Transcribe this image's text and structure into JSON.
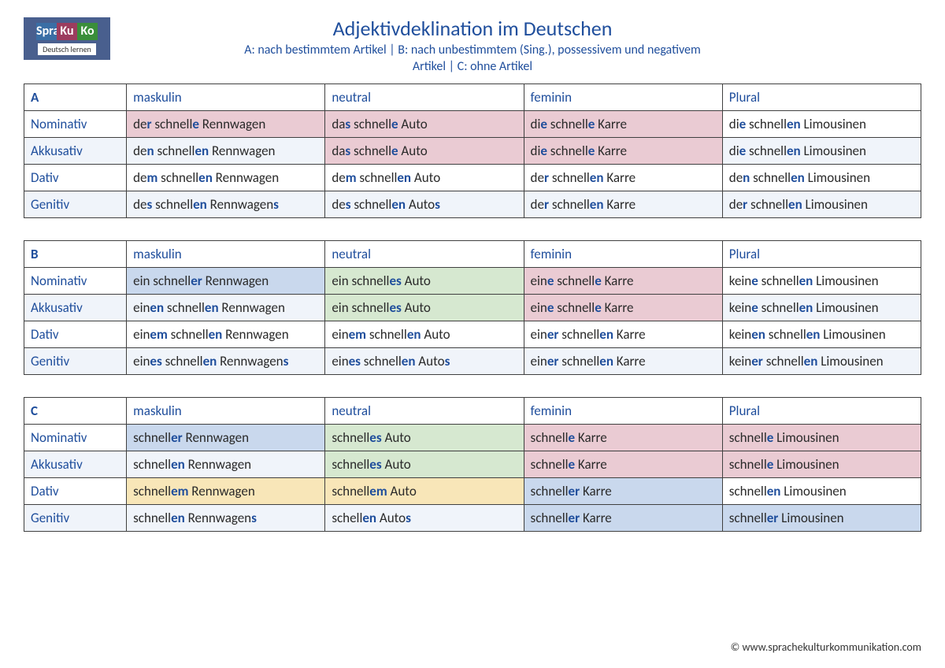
{
  "logo": {
    "line1": "Spra",
    "line2": "Ku",
    "line3": "Ko",
    "sub": "Deutsch lernen"
  },
  "title": "Adjektivdeklination im Deutschen",
  "subtitle1": "A: nach bestimmtem Artikel | B: nach unbestimmtem (Sing.), possessivem und negativem",
  "subtitle2": "Artikel | C: ohne Artikel",
  "columns": [
    "maskulin",
    "neutral",
    "feminin",
    "Plural"
  ],
  "cases": [
    "Nominativ",
    "Akkusativ",
    "Dativ",
    "Genitiv"
  ],
  "highlight_color": "#1f4e9c",
  "cell_colors": {
    "pink": "#eacbd3",
    "green": "#d6e8d0",
    "blue": "#c9d8ed",
    "yellow": "#f8e6b8",
    "alt": "#f0f4fa",
    "white": "#ffffff"
  },
  "tables": [
    {
      "letter": "A",
      "rows": [
        [
          {
            "segs": [
              "de",
              "r",
              " schnell",
              "e",
              " Rennwagen"
            ],
            "bg": "pink"
          },
          {
            "segs": [
              "da",
              "s",
              " schnell",
              "e",
              " Auto"
            ],
            "bg": "pink"
          },
          {
            "segs": [
              "di",
              "e",
              " schnell",
              "e",
              " Karre"
            ],
            "bg": "pink"
          },
          {
            "segs": [
              "di",
              "e",
              " schnell",
              "en",
              " Limousinen"
            ],
            "bg": "white"
          }
        ],
        [
          {
            "segs": [
              "de",
              "n",
              " schnell",
              "en",
              " Rennwagen"
            ],
            "bg": "alt"
          },
          {
            "segs": [
              "da",
              "s",
              " schnell",
              "e",
              " Auto"
            ],
            "bg": "pink"
          },
          {
            "segs": [
              "di",
              "e",
              " schnell",
              "e",
              " Karre"
            ],
            "bg": "pink"
          },
          {
            "segs": [
              "di",
              "e",
              " schnell",
              "en",
              " Limousinen"
            ],
            "bg": "alt"
          }
        ],
        [
          {
            "segs": [
              "de",
              "m",
              " schnell",
              "en",
              " Rennwagen"
            ],
            "bg": "white"
          },
          {
            "segs": [
              "de",
              "m",
              " schnell",
              "en",
              " Auto"
            ],
            "bg": "white"
          },
          {
            "segs": [
              "de",
              "r",
              " schnell",
              "en",
              " Karre"
            ],
            "bg": "white"
          },
          {
            "segs": [
              "de",
              "n",
              " schnell",
              "en",
              " Limousinen"
            ],
            "bg": "white"
          }
        ],
        [
          {
            "segs": [
              "de",
              "s",
              " schnell",
              "en",
              " Rennwagen",
              "s"
            ],
            "bg": "alt"
          },
          {
            "segs": [
              "de",
              "s",
              " schnell",
              "en",
              " Auto",
              "s"
            ],
            "bg": "alt"
          },
          {
            "segs": [
              "de",
              "r",
              " schnell",
              "en",
              " Karre"
            ],
            "bg": "alt"
          },
          {
            "segs": [
              "de",
              "r",
              " schnell",
              "en",
              " Limousinen"
            ],
            "bg": "alt"
          }
        ]
      ]
    },
    {
      "letter": "B",
      "rows": [
        [
          {
            "segs": [
              "ein schnell",
              "er",
              " Rennwagen"
            ],
            "bg": "blue"
          },
          {
            "segs": [
              "ein schnell",
              "es",
              " Auto"
            ],
            "bg": "green"
          },
          {
            "segs": [
              "ein",
              "e",
              " schnell",
              "e",
              " Karre"
            ],
            "bg": "pink"
          },
          {
            "segs": [
              "kein",
              "e",
              " schnell",
              "en",
              " Limousinen"
            ],
            "bg": "white"
          }
        ],
        [
          {
            "segs": [
              "ein",
              "en",
              " schnell",
              "en",
              " Rennwagen"
            ],
            "bg": "alt"
          },
          {
            "segs": [
              "ein schnell",
              "es",
              " Auto"
            ],
            "bg": "green"
          },
          {
            "segs": [
              "ein",
              "e",
              " schnell",
              "e",
              " Karre"
            ],
            "bg": "pink"
          },
          {
            "segs": [
              "kein",
              "e",
              " schnell",
              "en",
              " Limousinen"
            ],
            "bg": "alt"
          }
        ],
        [
          {
            "segs": [
              "ein",
              "em",
              " schnell",
              "en",
              " Rennwagen"
            ],
            "bg": "white"
          },
          {
            "segs": [
              "ein",
              "em",
              " schnell",
              "en",
              " Auto"
            ],
            "bg": "white"
          },
          {
            "segs": [
              "ein",
              "er",
              " schnell",
              "en",
              " Karre"
            ],
            "bg": "white"
          },
          {
            "segs": [
              "kein",
              "en",
              " schnell",
              "en",
              " Limousinen"
            ],
            "bg": "white"
          }
        ],
        [
          {
            "segs": [
              "ein",
              "es",
              " schnell",
              "en",
              " Rennwagen",
              "s"
            ],
            "bg": "alt"
          },
          {
            "segs": [
              "ein",
              "es",
              " schnell",
              "en",
              " Auto",
              "s"
            ],
            "bg": "alt"
          },
          {
            "segs": [
              "ein",
              "er",
              " schnell",
              "en",
              " Karre"
            ],
            "bg": "alt"
          },
          {
            "segs": [
              "kein",
              "er",
              " schnell",
              "en",
              " Limousinen"
            ],
            "bg": "alt"
          }
        ]
      ]
    },
    {
      "letter": "C",
      "rows": [
        [
          {
            "segs": [
              "schnell",
              "er",
              " Rennwagen"
            ],
            "bg": "blue"
          },
          {
            "segs": [
              "schnell",
              "es",
              " Auto"
            ],
            "bg": "green"
          },
          {
            "segs": [
              "schnell",
              "e",
              " Karre"
            ],
            "bg": "pink"
          },
          {
            "segs": [
              "schnell",
              "e",
              " Limousinen"
            ],
            "bg": "pink"
          }
        ],
        [
          {
            "segs": [
              "schnell",
              "en",
              " Rennwagen"
            ],
            "bg": "alt"
          },
          {
            "segs": [
              "schnell",
              "es",
              " Auto"
            ],
            "bg": "green"
          },
          {
            "segs": [
              "schnell",
              "e",
              " Karre"
            ],
            "bg": "pink"
          },
          {
            "segs": [
              "schnell",
              "e",
              " Limousinen"
            ],
            "bg": "pink"
          }
        ],
        [
          {
            "segs": [
              "schnell",
              "em",
              " Rennwagen"
            ],
            "bg": "yellow"
          },
          {
            "segs": [
              "schnell",
              "em",
              " Auto"
            ],
            "bg": "yellow"
          },
          {
            "segs": [
              "schnell",
              "er",
              " Karre"
            ],
            "bg": "blue"
          },
          {
            "segs": [
              "schnell",
              "en",
              " Limousinen"
            ],
            "bg": "white"
          }
        ],
        [
          {
            "segs": [
              "schnell",
              "en",
              " Rennwagen",
              "s"
            ],
            "bg": "alt"
          },
          {
            "segs": [
              "schell",
              "en",
              " Auto",
              "s"
            ],
            "bg": "alt"
          },
          {
            "segs": [
              "schnell",
              "er",
              " Karre"
            ],
            "bg": "blue"
          },
          {
            "segs": [
              "schnell",
              "er",
              " Limousinen"
            ],
            "bg": "blue"
          }
        ]
      ]
    }
  ],
  "footer": "© www.sprachekulturkommunikation.com"
}
